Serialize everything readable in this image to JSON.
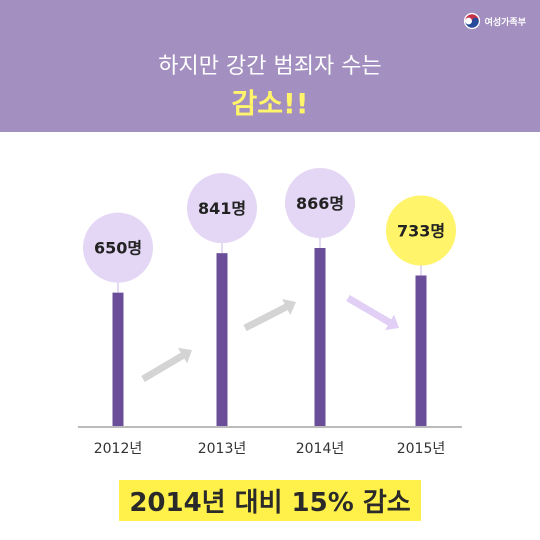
{
  "header": {
    "logo_text": "여성가족부",
    "title_line1": "하지만 강간 범죄자 수는",
    "title_line2": "감소!!"
  },
  "colors": {
    "header_bg": "#a38fc0",
    "bar": "#6b4e99",
    "bubble": "#e4d6f5",
    "bubble_highlight": "#fff46a",
    "arrow_up": "#d4d4d4",
    "arrow_down": "#e2cff6",
    "highlight_text": "#fff14a"
  },
  "chart_data": {
    "type": "bar",
    "categories": [
      "2012년",
      "2013년",
      "2014년",
      "2015년"
    ],
    "values": [
      650,
      841,
      866,
      733
    ],
    "value_labels": [
      "650명",
      "841명",
      "866명",
      "733명"
    ],
    "highlight_index": 3,
    "title": "",
    "xlabel": "",
    "ylabel": "",
    "grid": false
  },
  "footnote": "2014년 대비 15% 감소"
}
